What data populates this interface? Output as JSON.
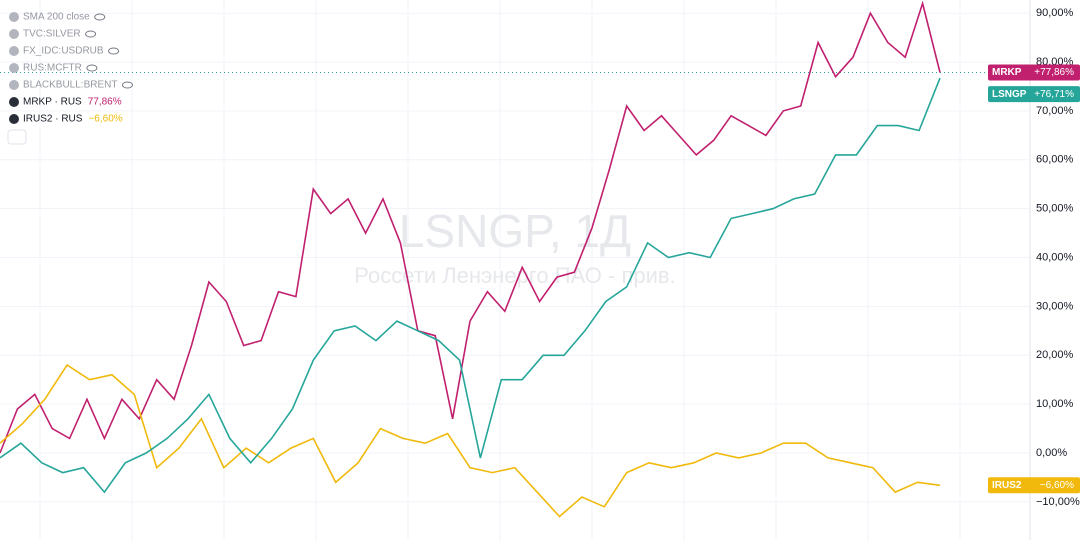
{
  "chart_data": {
    "type": "line",
    "title": "LSNGP, 1Д",
    "subtitle": "Россети Ленэнерго ПАО - прив.",
    "indicators": [
      "SMA 200 close",
      "TVC:SILVER",
      "FX_IDC:USDRUB",
      "RUS:MCFTR",
      "BLACKBULL:BRENT"
    ],
    "ylim": [
      -17.8,
      92.7
    ],
    "yticks": [
      {
        "value": -10,
        "label": "−10,00%"
      },
      {
        "value": 0,
        "label": "0,00%"
      },
      {
        "value": 10,
        "label": "10,00%"
      },
      {
        "value": 20,
        "label": "20,00%"
      },
      {
        "value": 30,
        "label": "30,00%"
      },
      {
        "value": 40,
        "label": "40,00%"
      },
      {
        "value": 50,
        "label": "50,00%"
      },
      {
        "value": 60,
        "label": "60,00%"
      },
      {
        "value": 70,
        "label": "70,00%"
      },
      {
        "value": 80,
        "label": "80,00%"
      },
      {
        "value": 90,
        "label": "90,00%"
      }
    ],
    "grid": true,
    "series": [
      {
        "name": "MRKP",
        "legend_text": "MRKP · RUS",
        "legend_value": "77,86%",
        "value_label": "+77,86%",
        "color": "#c0206e",
        "values": [
          0,
          9,
          12,
          5,
          3,
          11,
          3,
          11,
          7,
          15,
          11,
          22,
          35,
          31,
          22,
          23,
          33,
          32,
          54,
          49,
          52,
          45,
          52,
          43,
          25,
          24,
          7,
          27,
          33,
          29,
          38,
          31,
          36,
          37,
          46,
          58,
          71,
          66,
          69,
          65,
          61,
          64,
          69,
          67,
          65,
          70,
          71,
          84,
          77,
          81,
          90,
          84,
          81,
          92,
          77.86
        ]
      },
      {
        "name": "IRUS2",
        "legend_text": "IRUS2 · RUS",
        "legend_value": "−6,60%",
        "value_label": "−6,60%",
        "color": "#f0b90b",
        "values": [
          2,
          6,
          11,
          18,
          15,
          16,
          12,
          -3,
          1,
          7,
          -3,
          1,
          -2,
          1,
          3,
          -6,
          -2,
          5,
          3,
          2,
          4,
          -3,
          -4,
          -3,
          -8,
          -13,
          -9,
          -11,
          -4,
          -2,
          -3,
          -2,
          0,
          -1,
          0,
          2,
          2,
          -1,
          -2,
          -3,
          -8,
          -6,
          -6.6
        ]
      },
      {
        "name": "LSNGP",
        "value_label": "+76,71%",
        "color": "#26a69a",
        "values": [
          -1,
          2,
          -2,
          -4,
          -3,
          -8,
          -2,
          0,
          3,
          7,
          12,
          3,
          -2,
          3,
          9,
          19,
          25,
          26,
          23,
          27,
          25,
          23,
          19,
          -1,
          15,
          15,
          20,
          20,
          25,
          31,
          34,
          43,
          40,
          41,
          40,
          48,
          49,
          50,
          52,
          53,
          61,
          61,
          67,
          67,
          66,
          76.71
        ]
      }
    ]
  }
}
